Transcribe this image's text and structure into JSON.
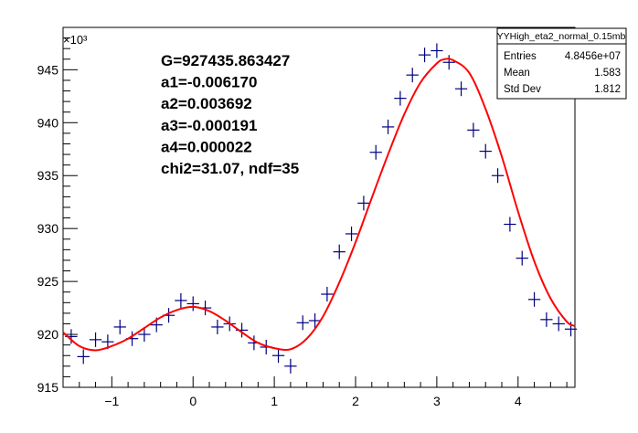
{
  "chart_data": {
    "type": "scatter",
    "xlim": [
      -1.6,
      4.7
    ],
    "ylim": [
      915,
      949
    ],
    "y_multiplier_label": "×10³",
    "x_ticks": [
      -1,
      0,
      1,
      2,
      3,
      4
    ],
    "x_tick_labels": [
      "−1",
      "0",
      "1",
      "2",
      "3",
      "4"
    ],
    "y_ticks": [
      915,
      920,
      925,
      930,
      935,
      940,
      945
    ],
    "y_tick_labels": [
      "915",
      "920",
      "925",
      "930",
      "935",
      "940",
      "945"
    ],
    "grid": false,
    "annotations": [
      "G=927435.863427",
      "a1=-0.006170",
      "a2=0.003692",
      "a3=-0.000191",
      "a4=0.000022",
      "chi2=31.07, ndf=35"
    ],
    "stats_box": {
      "title": "YYHigh_eta2_normal_0.15mb",
      "position": "top-right",
      "rows": [
        {
          "label": "Entries",
          "value": "4.8456e+07"
        },
        {
          "label": "Mean",
          "value": "1.583"
        },
        {
          "label": "Std Dev",
          "value": "1.812"
        }
      ]
    },
    "series": [
      {
        "type": "points",
        "color": "#000080",
        "x_half_width": 0.075,
        "x": [
          -1.5,
          -1.35,
          -1.2,
          -1.05,
          -0.9,
          -0.75,
          -0.6,
          -0.45,
          -0.3,
          -0.15,
          0.0,
          0.15,
          0.3,
          0.45,
          0.6,
          0.75,
          0.9,
          1.05,
          1.2,
          1.35,
          1.5,
          1.65,
          1.8,
          1.95,
          2.1,
          2.25,
          2.4,
          2.55,
          2.7,
          2.85,
          3.0,
          3.15,
          3.3,
          3.45,
          3.6,
          3.75,
          3.9,
          4.05,
          4.2,
          4.35,
          4.5,
          4.65
        ],
        "y": [
          919.8,
          917.9,
          919.5,
          919.3,
          920.7,
          919.6,
          920.0,
          920.9,
          921.8,
          923.2,
          922.9,
          922.5,
          920.7,
          921.0,
          920.4,
          919.2,
          918.8,
          918.0,
          917.0,
          921.1,
          921.3,
          923.8,
          927.8,
          929.5,
          932.4,
          937.2,
          939.6,
          942.3,
          944.5,
          946.4,
          946.8,
          945.7,
          943.2,
          939.3,
          937.3,
          935.0,
          930.4,
          927.2,
          923.3,
          921.4,
          921.0,
          920.5
        ]
      },
      {
        "type": "fit-curve",
        "color": "#ff0000",
        "x": [
          -1.6,
          -1.4,
          -1.2,
          -1.0,
          -0.8,
          -0.6,
          -0.4,
          -0.2,
          0.0,
          0.2,
          0.4,
          0.6,
          0.8,
          1.0,
          1.2,
          1.4,
          1.6,
          1.8,
          2.0,
          2.2,
          2.4,
          2.6,
          2.8,
          3.0,
          3.1,
          3.2,
          3.4,
          3.6,
          3.8,
          4.0,
          4.2,
          4.4,
          4.6,
          4.7
        ],
        "y": [
          920.2,
          918.9,
          918.5,
          918.9,
          919.6,
          920.6,
          921.6,
          922.3,
          922.6,
          922.2,
          921.3,
          920.2,
          919.2,
          918.7,
          918.6,
          919.6,
          921.7,
          924.9,
          928.7,
          932.9,
          937.0,
          940.8,
          943.8,
          945.6,
          946.0,
          945.9,
          944.7,
          941.3,
          936.8,
          931.6,
          926.9,
          923.4,
          921.2,
          920.8
        ]
      }
    ]
  }
}
